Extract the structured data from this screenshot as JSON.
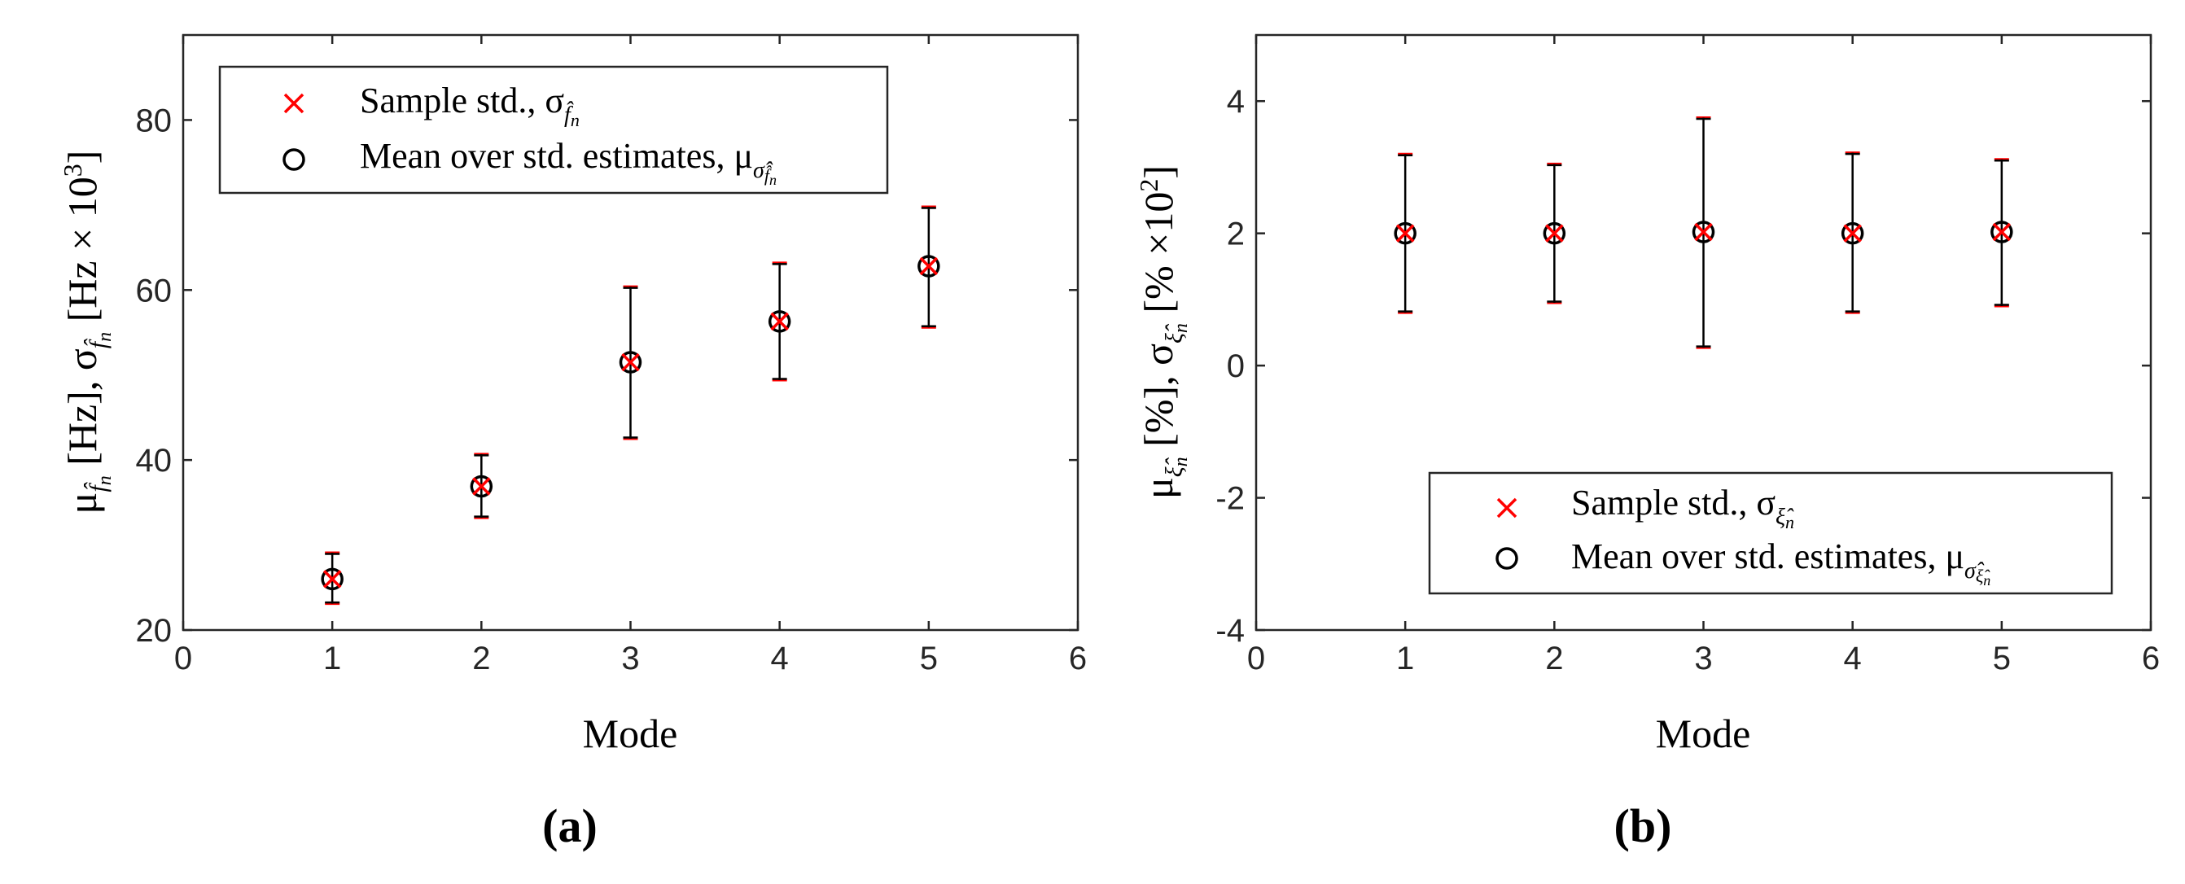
{
  "chart_data": [
    {
      "type": "scatter",
      "panel_label": "(a)",
      "xlabel": "Mode",
      "ylabel": "μ_{f̂_n} [Hz], σ_{f̂_n} [Hz × 10^3]",
      "xlim": [
        0,
        6
      ],
      "ylim": [
        20,
        90
      ],
      "xticks": [
        "0",
        "1",
        "2",
        "3",
        "4",
        "5",
        "6"
      ],
      "yticks": [
        "20",
        "40",
        "60",
        "80"
      ],
      "legend_position": "top-left",
      "grid": false,
      "series": [
        {
          "name": "Sample std., σ_{f̂_n}",
          "marker": "x",
          "color": "#ff0000",
          "x": [
            1,
            2,
            3,
            4,
            5
          ],
          "y": [
            26.0,
            36.9,
            51.5,
            56.3,
            62.8
          ],
          "err_low": [
            23.1,
            33.2,
            42.5,
            49.4,
            55.6
          ],
          "err_high": [
            29.1,
            40.7,
            60.4,
            63.2,
            69.8
          ]
        },
        {
          "name": "Mean over std. estimates, μ_{σ̂_{f̂_n}}",
          "marker": "o",
          "color": "#000000",
          "x": [
            1,
            2,
            3,
            4,
            5
          ],
          "y": [
            26.0,
            36.9,
            51.5,
            56.3,
            62.8
          ],
          "err_low": [
            23.1,
            33.2,
            42.5,
            49.4,
            55.6
          ],
          "err_high": [
            29.1,
            40.7,
            60.4,
            63.2,
            69.8
          ]
        }
      ]
    },
    {
      "type": "scatter",
      "panel_label": "(b)",
      "xlabel": "Mode",
      "ylabel": "μ_{ξ̂_n} [%], σ_{ξ̂_n} [% × 10^2]",
      "xlim": [
        0,
        6
      ],
      "ylim": [
        -4,
        5
      ],
      "xticks": [
        "0",
        "1",
        "2",
        "3",
        "4",
        "5",
        "6"
      ],
      "yticks": [
        "-4",
        "-2",
        "0",
        "2",
        "4"
      ],
      "legend_position": "bottom-right",
      "grid": false,
      "series": [
        {
          "name": "Sample std., σ_{ξ̂_n}",
          "marker": "x",
          "color": "#ff0000",
          "x": [
            1,
            2,
            3,
            4,
            5
          ],
          "y": [
            2.0,
            2.0,
            2.02,
            2.0,
            2.02
          ],
          "err_low": [
            0.8,
            0.95,
            0.27,
            0.8,
            0.9
          ],
          "err_high": [
            3.2,
            3.05,
            3.75,
            3.22,
            3.12
          ]
        },
        {
          "name": "Mean over std. estimates, μ_{σ̂_{ξ̂_n}}",
          "marker": "o",
          "color": "#000000",
          "x": [
            1,
            2,
            3,
            4,
            5
          ],
          "y": [
            2.0,
            2.0,
            2.02,
            2.0,
            2.02
          ],
          "err_low": [
            0.8,
            0.95,
            0.27,
            0.8,
            0.9
          ],
          "err_high": [
            3.2,
            3.05,
            3.75,
            3.22,
            3.12
          ]
        }
      ]
    }
  ]
}
